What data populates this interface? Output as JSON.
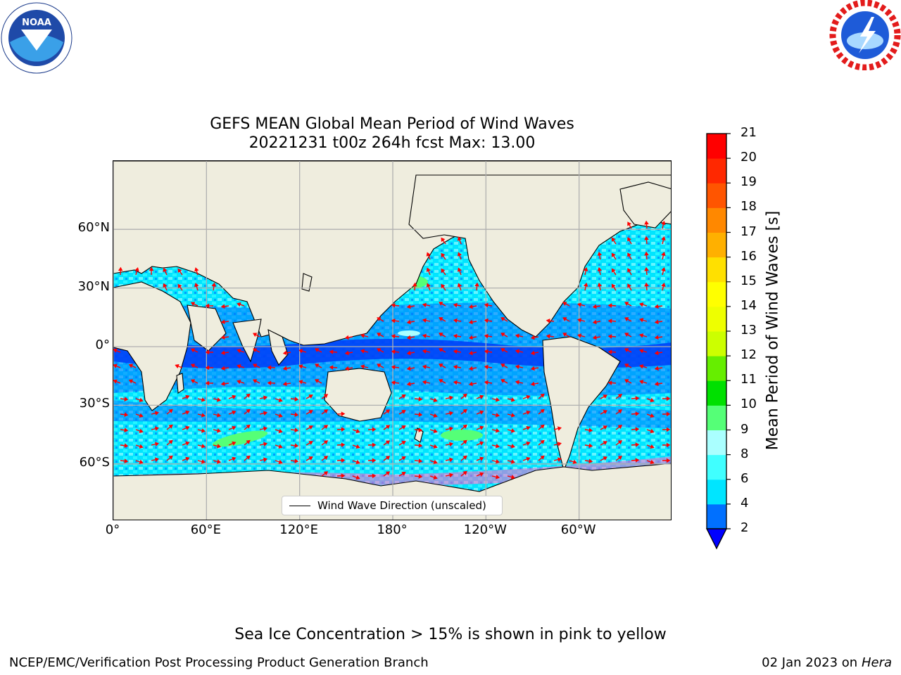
{
  "title": {
    "line1": "GEFS MEAN Global Mean Period of Wind Waves",
    "line2": "20221231 t00z 264h fcst   Max: 13.00"
  },
  "axes": {
    "y_ticks": [
      {
        "label": "60°N",
        "lat": 60
      },
      {
        "label": "30°N",
        "lat": 30
      },
      {
        "label": "0°",
        "lat": 0
      },
      {
        "label": "30°S",
        "lat": -30
      },
      {
        "label": "60°S",
        "lat": -60
      }
    ],
    "x_ticks": [
      {
        "label": "0°",
        "lon": 0
      },
      {
        "label": "60°E",
        "lon": 60
      },
      {
        "label": "120°E",
        "lon": 120
      },
      {
        "label": "180°",
        "lon": 180
      },
      {
        "label": "120°W",
        "lon": 240
      },
      {
        "label": "60°W",
        "lon": 300
      }
    ]
  },
  "legend": {
    "label": "Wind Wave Direction (unscaled)"
  },
  "colorbar": {
    "label": "Mean Period of Wind Waves [s]",
    "ticks": [
      "21",
      "20",
      "19",
      "18",
      "17",
      "16",
      "15",
      "14",
      "13",
      "12",
      "11",
      "10",
      "9",
      "8",
      "6",
      "4",
      "2"
    ],
    "levels": [
      2,
      4,
      6,
      8,
      9,
      10,
      11,
      12,
      13,
      14,
      15,
      16,
      17,
      18,
      19,
      20,
      21
    ],
    "colors": [
      "#0070ff",
      "#00e5ff",
      "#40ffff",
      "#aaffff",
      "#55ff77",
      "#00e000",
      "#66ee00",
      "#ccff00",
      "#eeff00",
      "#ffff00",
      "#ffe000",
      "#ffb000",
      "#ff8800",
      "#ff5500",
      "#ff2800",
      "#ff0000"
    ],
    "under_color": "#0000ff"
  },
  "colors": {
    "land": "#efedde",
    "ocean_low": "#0000ee",
    "ocean_mid": "#0070ff",
    "ocean_high": "#40ffff",
    "arrow": "#ff0000",
    "grid": "#b0b0b0",
    "ice": "#ff66cc"
  },
  "note": "Sea Ice Concentration > 15% is shown in pink to yellow",
  "footer": {
    "left": "NCEP/EMC/Verification Post Processing Product Generation Branch",
    "right_date": "02 Jan 2023 on ",
    "right_host": "Hera"
  },
  "logos": {
    "left": {
      "name": "NOAA",
      "text": "NOAA"
    },
    "right": {
      "name": "NATIONAL WEATHER SERVICE"
    }
  }
}
